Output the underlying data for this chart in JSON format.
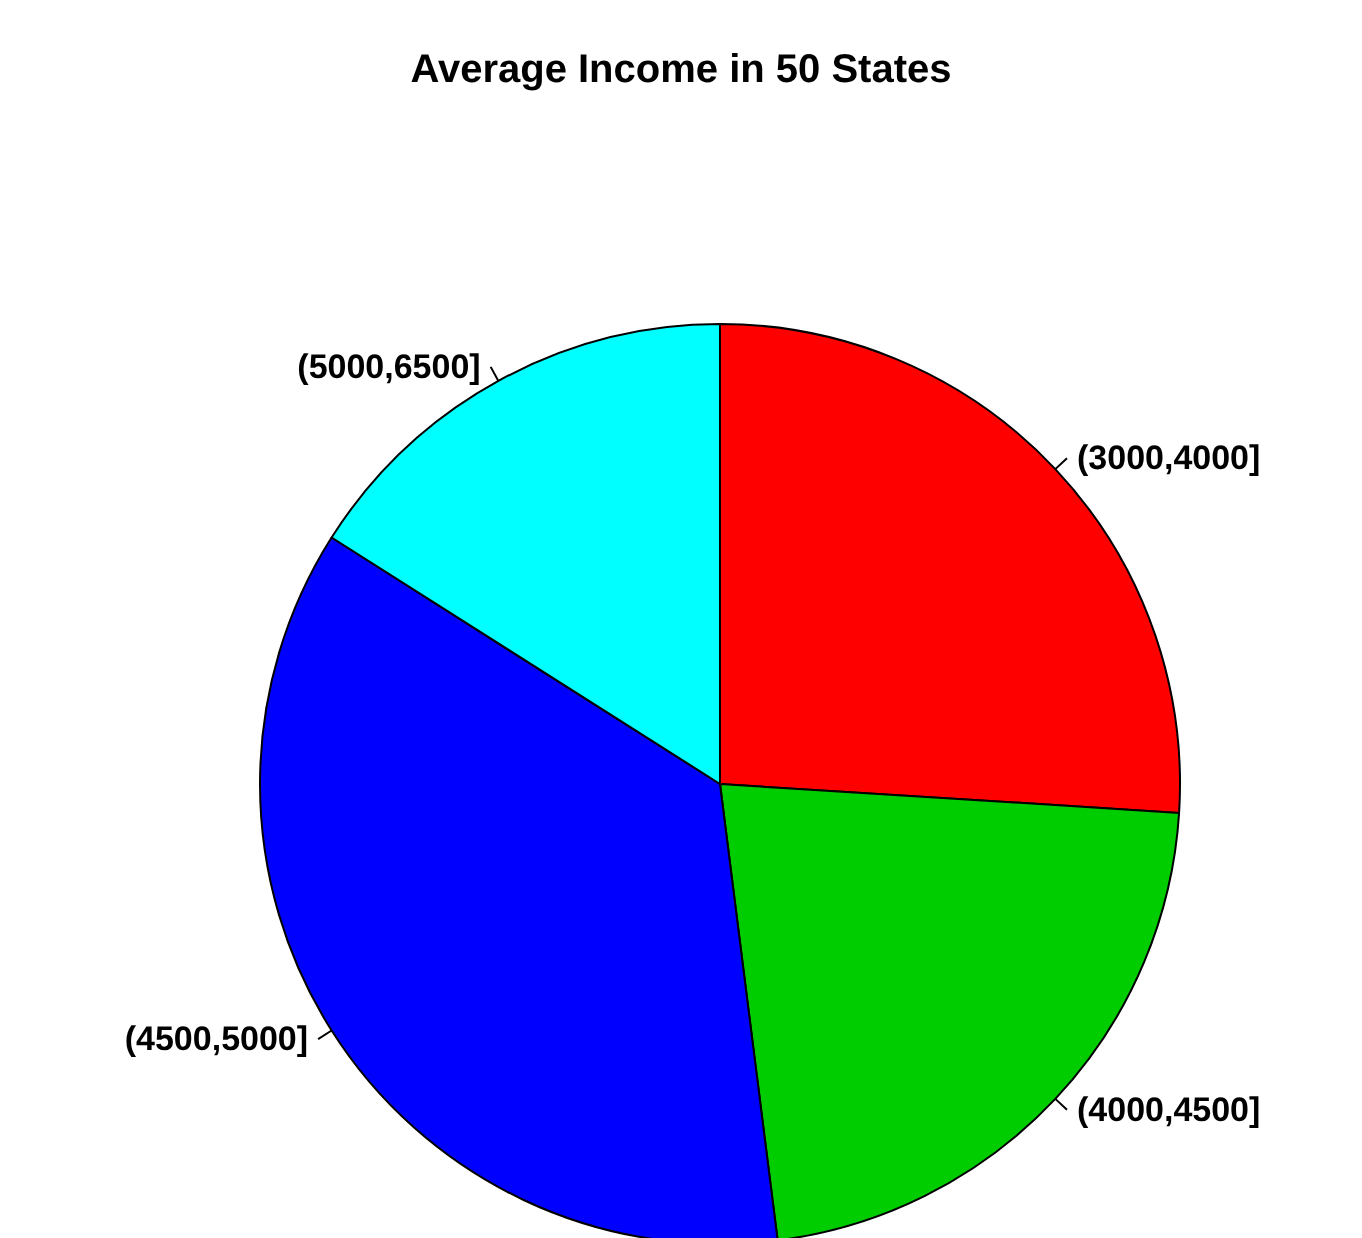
{
  "chart_data": {
    "type": "pie",
    "title": "Average Income in 50 States",
    "categories": [
      "(3000,4000]",
      "(4000,4500]",
      "(4500,5000]",
      "(5000,6500]"
    ],
    "values": [
      26,
      22,
      36,
      16
    ],
    "colors": [
      "#ff0000",
      "#00cd00",
      "#0000ff",
      "#00ffff"
    ]
  }
}
